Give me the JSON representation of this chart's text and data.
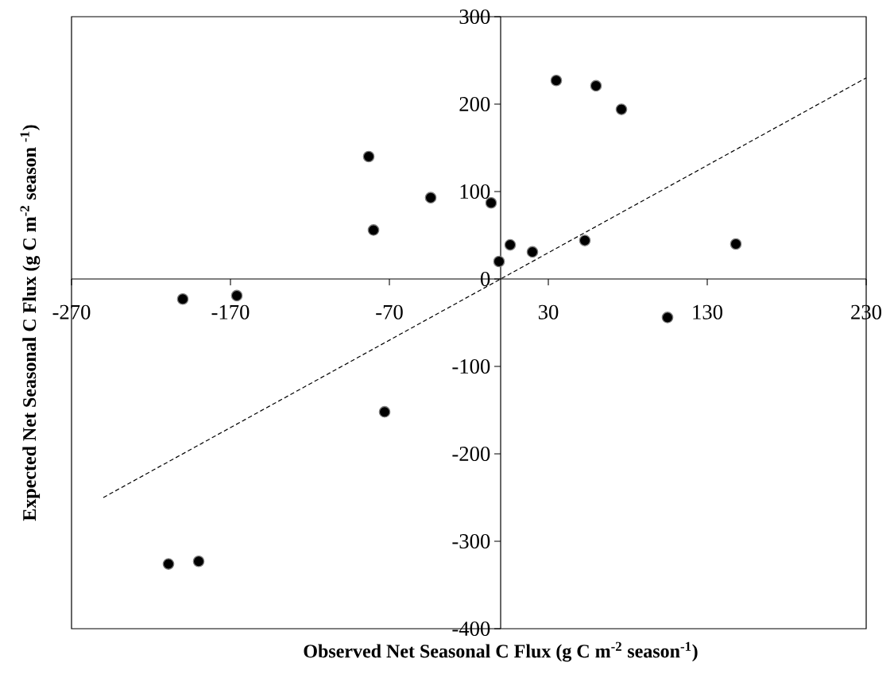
{
  "chart_data": {
    "type": "scatter",
    "xlabel": "Observed Net Seasonal C Flux (g C m$^{-2}$ season$^{-1}$)",
    "ylabel": "Expected Net Seasonal C Flux  (g C m$^{-2}$ season $^{-1}$)",
    "xlim": [
      -270,
      230
    ],
    "ylim": [
      -400,
      300
    ],
    "xticks": [
      -270,
      -170,
      -70,
      30,
      130,
      230
    ],
    "yticks": [
      -400,
      -300,
      -200,
      -100,
      0,
      100,
      200,
      300
    ],
    "marker": "circle",
    "series": [
      {
        "color": "#000000",
        "x": [
          -200,
          -166,
          -83,
          -80,
          -44,
          -6,
          -1,
          6,
          20,
          35,
          60,
          76,
          53,
          148,
          105,
          -73,
          -209,
          -190
        ],
        "values": [
          -23,
          -19,
          140,
          56,
          93,
          87,
          20,
          39,
          31,
          227,
          221,
          194,
          44,
          40,
          -44,
          -152,
          -326,
          -323
        ]
      },
      {
        "type": "line",
        "color": "#000000",
        "line_style": "dashed",
        "marker": "none",
        "x": [
          -250,
          230
        ],
        "values": [
          -250,
          230
        ]
      }
    ]
  }
}
